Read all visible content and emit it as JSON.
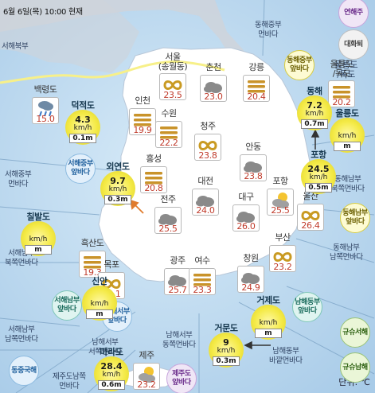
{
  "header": "6월 6일(목) 10:00 현재",
  "unit_label": "단위: ℃",
  "regions": [
    {
      "id": "r1",
      "text": "서해북부"
    },
    {
      "id": "r2",
      "text": "동해중부\n먼바다"
    },
    {
      "id": "r3",
      "text": "서해중부\n먼바다"
    },
    {
      "id": "r4",
      "text": "동해남부\n북쪽먼바다"
    },
    {
      "id": "r5",
      "text": "서해남부\n북쪽먼바다"
    },
    {
      "id": "r6",
      "text": "동해남부\n남쪽먼바다"
    },
    {
      "id": "r7",
      "text": "서해남부\n남쪽먼바다"
    },
    {
      "id": "r8",
      "text": "남해서부\n동쪽먼바다"
    },
    {
      "id": "r9",
      "text": "남해서부\n서쪽먼바다"
    },
    {
      "id": "r10",
      "text": "남해동부\n바깥먼바다"
    },
    {
      "id": "r11",
      "text": "제주도남쪽\n먼바다"
    },
    {
      "id": "r12",
      "text": "울릉도\n/독도"
    }
  ],
  "badges": [
    {
      "id": "b1",
      "text": "연해주",
      "color": "purple"
    },
    {
      "id": "b2",
      "text": "대화퇴",
      "color": "gray"
    },
    {
      "id": "b3",
      "text": "동해중부\n앞바다",
      "color": "yellow"
    },
    {
      "id": "b4",
      "text": "서해중부\n앞바다",
      "color": "blue"
    },
    {
      "id": "b5",
      "text": "동해남부\n앞바다",
      "color": "yellow"
    },
    {
      "id": "b6",
      "text": "서해남부\n앞바다",
      "color": "teal"
    },
    {
      "id": "b7",
      "text": "남해서부\n앞바다",
      "color": "blue"
    },
    {
      "id": "b8",
      "text": "남해동부\n앞바다",
      "color": "teal"
    },
    {
      "id": "b9",
      "text": "규슈서해",
      "color": "green"
    },
    {
      "id": "b10",
      "text": "동중국해",
      "color": "blue"
    },
    {
      "id": "b11",
      "text": "제주도\n앞바다",
      "color": "purple"
    },
    {
      "id": "b12",
      "text": "규슈남해",
      "color": "green"
    }
  ],
  "cities": [
    {
      "id": "baengnyeong",
      "name": "백령도",
      "temp": "15.0",
      "weather": "rain-icon"
    },
    {
      "id": "seoul",
      "name": "서울\n(송월동)",
      "temp": "23.5",
      "weather": "haze-icon"
    },
    {
      "id": "chuncheon",
      "name": "춘천",
      "temp": "23.0",
      "weather": "cloudy-icon"
    },
    {
      "id": "gangneung",
      "name": "강릉",
      "temp": "20.4",
      "weather": "fog-icon"
    },
    {
      "id": "ulleungdo",
      "name": "울릉도\n/독도",
      "temp": "20.2",
      "weather": "fog-icon"
    },
    {
      "id": "incheon",
      "name": "인천",
      "temp": "19.9",
      "weather": "fog-icon"
    },
    {
      "id": "suwon",
      "name": "수원",
      "temp": "22.2",
      "weather": "fog-icon"
    },
    {
      "id": "cheongju",
      "name": "청주",
      "temp": "23.8",
      "weather": "haze-icon"
    },
    {
      "id": "andong",
      "name": "안동",
      "temp": "23.8",
      "weather": "cloudy-icon"
    },
    {
      "id": "hongseong",
      "name": "홍성",
      "temp": "20.8",
      "weather": "fog-icon"
    },
    {
      "id": "daejeon",
      "name": "대전",
      "temp": "24.0",
      "weather": "cloudy-icon"
    },
    {
      "id": "pohang",
      "name": "포항",
      "temp": "25.5",
      "weather": "partly-cloudy-icon"
    },
    {
      "id": "jeonju",
      "name": "전주",
      "temp": "25.5",
      "weather": "cloudy-icon"
    },
    {
      "id": "daegu",
      "name": "대구",
      "temp": "26.0",
      "weather": "cloudy-icon"
    },
    {
      "id": "ulsan",
      "name": "울산",
      "temp": "26.4",
      "weather": "haze-icon"
    },
    {
      "id": "heuksando",
      "name": "흑산도",
      "temp": "19.3",
      "weather": "fog-icon"
    },
    {
      "id": "gwangju",
      "name": "광주",
      "temp": "25.7",
      "weather": "cloudy-icon"
    },
    {
      "id": "yeosu",
      "name": "여수",
      "temp": "23.3",
      "weather": "fog-icon"
    },
    {
      "id": "changwon",
      "name": "창원",
      "temp": "24.9",
      "weather": "cloudy-icon"
    },
    {
      "id": "busan",
      "name": "부산",
      "temp": "23.2",
      "weather": "haze-icon"
    },
    {
      "id": "mokpo",
      "name": "목포",
      "temp": "24.1",
      "weather": "haze-icon"
    },
    {
      "id": "jeju",
      "name": "제주",
      "temp": "23.2",
      "weather": "partly-cloudy-icon"
    }
  ],
  "buoys": [
    {
      "id": "deokjeokdo",
      "name": "덕적도",
      "speed": "4.3",
      "unit": "km/h",
      "height": "0.1m"
    },
    {
      "id": "oeyeondo",
      "name": "외연도",
      "speed": "9.7",
      "unit": "km/h",
      "height": "0.3m"
    },
    {
      "id": "chilbaldo",
      "name": "칠발도",
      "speed": "",
      "unit": "km/h",
      "height": "m"
    },
    {
      "id": "sinan",
      "name": "신안",
      "speed": "",
      "unit": "km/h",
      "height": "m"
    },
    {
      "id": "marado",
      "name": "마라도",
      "speed": "28.4",
      "unit": "km/h",
      "height": "0.6m"
    },
    {
      "id": "geomundo",
      "name": "거문도",
      "speed": "9",
      "unit": "km/h",
      "height": "0.3m"
    },
    {
      "id": "geojedo",
      "name": "거제도",
      "speed": "",
      "unit": "km/h",
      "height": "m"
    },
    {
      "id": "pohang-buoy",
      "name": "포항",
      "speed": "24.5",
      "unit": "km/h",
      "height": "0.5m"
    },
    {
      "id": "donghae",
      "name": "동해",
      "speed": "7.2",
      "unit": "km/h",
      "height": "0.7m"
    },
    {
      "id": "ulleungdo-buoy",
      "name": "울릉도",
      "speed": "",
      "unit": "km/h",
      "height": "m"
    }
  ]
}
